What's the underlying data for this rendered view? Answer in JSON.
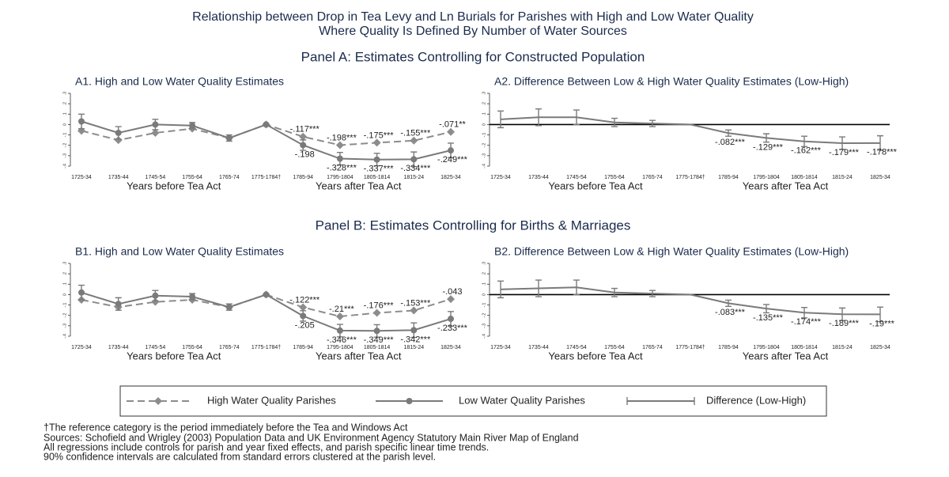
{
  "figure": {
    "title": [
      "Relationship between Drop in Tea Levy and Ln Burials for Parishes with High and Low Water Quality",
      "Where Quality Is Defined By Number of Water Sources"
    ],
    "panels": [
      "Panel A: Estimates Controlling for Constructed Population",
      "Panel B: Estimates Controlling for Births & Marriages"
    ]
  },
  "notes": [
    "†The reference category is the period immediately before the Tea and Windows Act",
    "Sources: Schofield and Wrigley (2003) Population Data and UK Environment Agency Statutory Main River Map of England",
    "All regressions include controls for parish and year fixed effects, and parish specific linear time trends.",
    "90% confidence intervals are calculated from standard errors clustered at the parish level."
  ],
  "chart_data": [
    {
      "type": "line",
      "title": "A1. High and Low Water Quality Estimates",
      "categories": [
        "1725-34",
        "1735-44",
        "1745-54",
        "1755-64",
        "1765-74",
        "1775-1784†",
        "1785-94",
        "1795-1804",
        "1805-1814",
        "1815-24",
        "1825-34"
      ],
      "xlabels": [
        "Years before Tea Act",
        "Years after Tea Act"
      ],
      "ylim": [
        -0.4,
        0.3
      ],
      "yticks": [
        {
          "value": -0.4,
          "label": "-.4"
        },
        {
          "value": -0.3,
          "label": "-.3"
        },
        {
          "value": -0.2,
          "label": "-.2"
        },
        {
          "value": -0.1,
          "label": "-.1"
        },
        0,
        {
          "value": 0.1,
          "label": ".1"
        },
        {
          "value": 0.2,
          "label": ".2"
        },
        {
          "value": 0.3,
          "label": ".3"
        }
      ],
      "series": [
        {
          "name": "High Water Quality Parishes",
          "color": "#8c8c8c",
          "dash": true,
          "marker": "diamond",
          "label_position": "above",
          "values": [
            -0.06,
            -0.15,
            -0.08,
            -0.04,
            -0.13,
            0,
            -0.117,
            -0.198,
            -0.175,
            -0.155,
            -0.071
          ],
          "value_labels": [
            null,
            null,
            null,
            null,
            null,
            null,
            "-.117***",
            "-.198***",
            "-.175***",
            "-.155***",
            "-.071**"
          ]
        },
        {
          "name": "Low Water Quality Parishes",
          "color": "#7a7a7a",
          "dash": false,
          "marker": "circle",
          "label_position": "below",
          "values": [
            0.03,
            -0.08,
            0.0,
            -0.01,
            -0.13,
            0,
            -0.198,
            -0.328,
            -0.337,
            -0.334,
            -0.249
          ],
          "errors": [
            0.07,
            0.06,
            0.05,
            0.03,
            0.03,
            null,
            0.05,
            0.06,
            0.06,
            0.07,
            0.07
          ],
          "value_labels": [
            null,
            null,
            null,
            null,
            null,
            null,
            "-.198",
            "-.328***",
            "-.337***",
            "-.334***",
            "-.249***"
          ]
        }
      ]
    },
    {
      "type": "line",
      "title": "A2. Difference Between Low & High Water Quality Estimates (Low-High)",
      "categories": [
        "1725-34",
        "1735-44",
        "1745-54",
        "1755-64",
        "1765-74",
        "1775-1784†",
        "1785-94",
        "1795-1804",
        "1805-1814",
        "1815-24",
        "1825-34"
      ],
      "xlabels": [
        "Years before Tea Act",
        "Years after Tea Act"
      ],
      "ylim": [
        -0.4,
        0.3
      ],
      "zero_line": true,
      "yticks": [
        {
          "value": -0.4,
          "label": "-.4"
        },
        {
          "value": -0.3,
          "label": "-.3"
        },
        {
          "value": -0.2,
          "label": "-.2"
        },
        {
          "value": -0.1,
          "label": "-.1"
        },
        0,
        {
          "value": 0.1,
          "label": ".1"
        },
        {
          "value": 0.2,
          "label": ".2"
        },
        {
          "value": 0.3,
          "label": ".3"
        }
      ],
      "series": [
        {
          "name": "Difference (Low-High)",
          "color": "#7a7a7a",
          "dash": false,
          "marker": "none",
          "label_position": "below",
          "values": [
            0.05,
            0.07,
            0.07,
            0.02,
            0.01,
            0,
            -0.082,
            -0.129,
            -0.162,
            -0.179,
            -0.178
          ],
          "errors": [
            0.08,
            0.08,
            0.07,
            0.04,
            0.03,
            null,
            0.03,
            0.04,
            0.05,
            0.06,
            0.07
          ],
          "value_labels": [
            null,
            null,
            null,
            null,
            null,
            null,
            "-.082***",
            "-.129***",
            "-.162***",
            "-.179***",
            "-.178***"
          ]
        }
      ]
    },
    {
      "type": "line",
      "title": "B1. High and Low Water Quality Estimates",
      "categories": [
        "1725-34",
        "1735-44",
        "1745-54",
        "1755-64",
        "1765-74",
        "1775-1784†",
        "1785-94",
        "1795-1804",
        "1805-1814",
        "1815-24",
        "1825-34"
      ],
      "xlabels": [
        "Years before Tea Act",
        "Years after Tea Act"
      ],
      "ylim": [
        -0.4,
        0.3
      ],
      "yticks": [
        {
          "value": -0.4,
          "label": "-.4"
        },
        {
          "value": -0.3,
          "label": "-.3"
        },
        {
          "value": -0.2,
          "label": "-.2"
        },
        {
          "value": -0.1,
          "label": "-.1"
        },
        0,
        {
          "value": 0.1,
          "label": ".1"
        },
        {
          "value": 0.2,
          "label": ".2"
        },
        {
          "value": 0.3,
          "label": ".3"
        }
      ],
      "series": [
        {
          "color": "#8c8c8c",
          "dash": true,
          "marker": "diamond",
          "label_position": "above",
          "values": [
            -0.05,
            -0.12,
            -0.07,
            -0.05,
            -0.12,
            0,
            -0.122,
            -0.21,
            -0.176,
            -0.153,
            -0.043
          ],
          "value_labels": [
            null,
            null,
            null,
            null,
            null,
            null,
            "-.122***",
            "-.21***",
            "-.176***",
            "-.153***",
            "-.043"
          ]
        },
        {
          "color": "#7a7a7a",
          "dash": false,
          "marker": "circle",
          "label_position": "below",
          "values": [
            0.02,
            -0.09,
            -0.01,
            -0.02,
            -0.12,
            0,
            -0.205,
            -0.346,
            -0.349,
            -0.342,
            -0.233
          ],
          "errors": [
            0.07,
            0.06,
            0.05,
            0.03,
            0.03,
            null,
            0.05,
            0.06,
            0.06,
            0.07,
            0.07
          ],
          "value_labels": [
            null,
            null,
            null,
            null,
            null,
            null,
            "-.205",
            "-.346***",
            "-.349***",
            "-.342***",
            "-.233***"
          ]
        }
      ]
    },
    {
      "type": "line",
      "title": "B2. Difference Between Low & High Water Quality Estimates (Low-High)",
      "categories": [
        "1725-34",
        "1735-44",
        "1745-54",
        "1755-64",
        "1765-74",
        "1775-1784†",
        "1785-94",
        "1795-1804",
        "1805-1814",
        "1815-24",
        "1825-34"
      ],
      "xlabels": [
        "Years before Tea Act",
        "Years after Tea Act"
      ],
      "ylim": [
        -0.4,
        0.3
      ],
      "zero_line": true,
      "yticks": [
        {
          "value": -0.4,
          "label": "-.4"
        },
        {
          "value": -0.3,
          "label": "-.3"
        },
        {
          "value": -0.2,
          "label": "-.2"
        },
        {
          "value": -0.1,
          "label": "-.1"
        },
        0,
        {
          "value": 0.1,
          "label": ".1"
        },
        {
          "value": 0.2,
          "label": ".2"
        },
        {
          "value": 0.3,
          "label": ".3"
        }
      ],
      "series": [
        {
          "color": "#7a7a7a",
          "dash": false,
          "marker": "none",
          "label_position": "below",
          "values": [
            0.05,
            0.06,
            0.07,
            0.02,
            0.01,
            0,
            -0.083,
            -0.135,
            -0.174,
            -0.189,
            -0.19
          ],
          "errors": [
            0.08,
            0.08,
            0.07,
            0.04,
            0.03,
            null,
            0.03,
            0.04,
            0.05,
            0.06,
            0.07
          ],
          "value_labels": [
            null,
            null,
            null,
            null,
            null,
            null,
            "-.083***",
            "-.135***",
            "-.174***",
            "-.189***",
            "-.19***"
          ]
        }
      ]
    }
  ]
}
